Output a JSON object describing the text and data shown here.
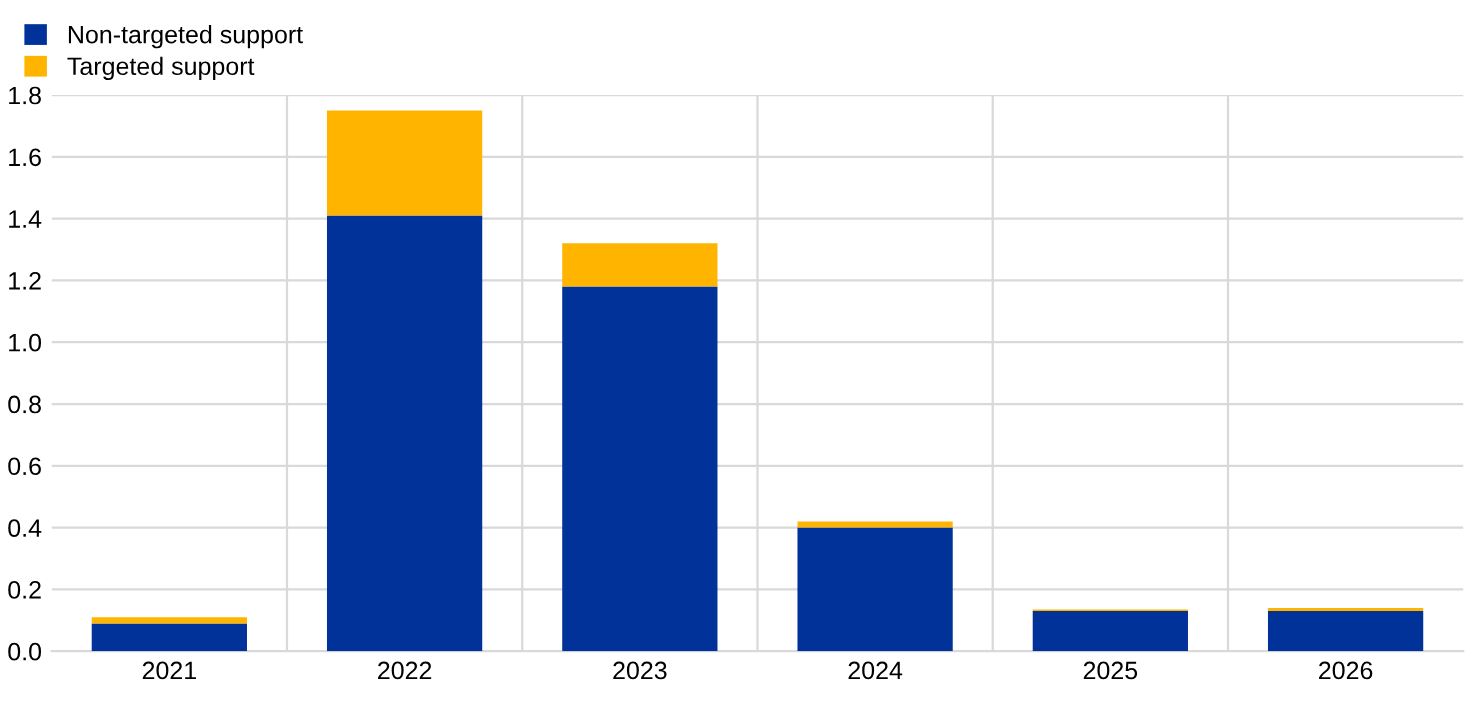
{
  "chart_data": {
    "type": "bar",
    "stacked": true,
    "categories": [
      "2021",
      "2022",
      "2023",
      "2024",
      "2025",
      "2026"
    ],
    "series": [
      {
        "name": "Non-targeted support",
        "color": "#003299",
        "values": [
          0.09,
          1.41,
          1.18,
          0.4,
          0.13,
          0.13
        ]
      },
      {
        "name": "Targeted support",
        "color": "#ffb400",
        "values": [
          0.02,
          0.34,
          0.14,
          0.02,
          0.005,
          0.01
        ]
      }
    ],
    "ylim": [
      0,
      1.8
    ],
    "yticks": [
      {
        "value": 0,
        "label": "0.0"
      },
      0.2,
      0.4,
      0.6,
      0.8,
      {
        "value": 1,
        "label": "1.0"
      },
      1.2,
      1.4,
      1.6,
      1.8
    ],
    "grid": true,
    "legend": "top left"
  }
}
